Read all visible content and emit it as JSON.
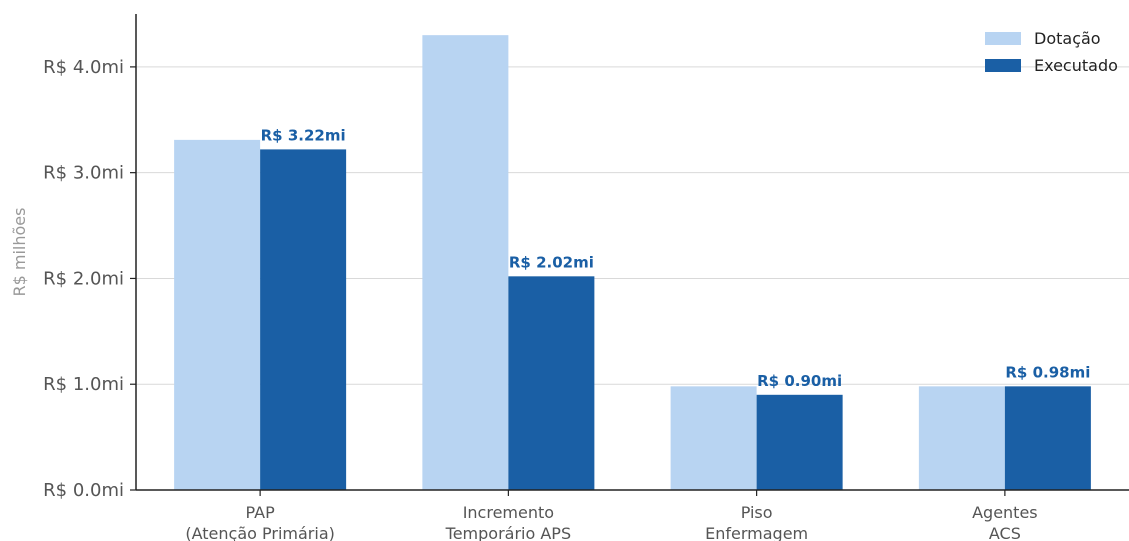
{
  "chart_data": {
    "type": "bar",
    "title": "",
    "xlabel": "",
    "ylabel": "R$ milhões",
    "ylim": [
      0,
      4.5
    ],
    "yticks": [
      {
        "value": 0,
        "label": "R$ 0.0mi"
      },
      {
        "value": 1,
        "label": "R$ 1.0mi"
      },
      {
        "value": 2,
        "label": "R$ 2.0mi"
      },
      {
        "value": 3,
        "label": "R$ 3.0mi"
      },
      {
        "value": 4,
        "label": "R$ 4.0mi"
      }
    ],
    "categories": [
      [
        "PAP",
        "(Atenção Primária)"
      ],
      [
        "Incremento",
        "Temporário APS"
      ],
      [
        "Piso",
        "Enfermagem"
      ],
      [
        "Agentes",
        "ACS"
      ]
    ],
    "series": [
      {
        "name": "Dotação",
        "color": "#b8d4f2",
        "values": [
          3.31,
          4.3,
          0.98,
          0.98
        ]
      },
      {
        "name": "Executado",
        "color": "#1a5fa5",
        "values": [
          3.22,
          2.02,
          0.9,
          0.98
        ],
        "data_labels": [
          "R$ 3.22mi",
          "R$ 2.02mi",
          "R$ 0.90mi",
          "R$ 0.98mi"
        ]
      }
    ],
    "grid": "horizontal",
    "legend_position": "top-right",
    "label_color": "#1a5fa5"
  }
}
